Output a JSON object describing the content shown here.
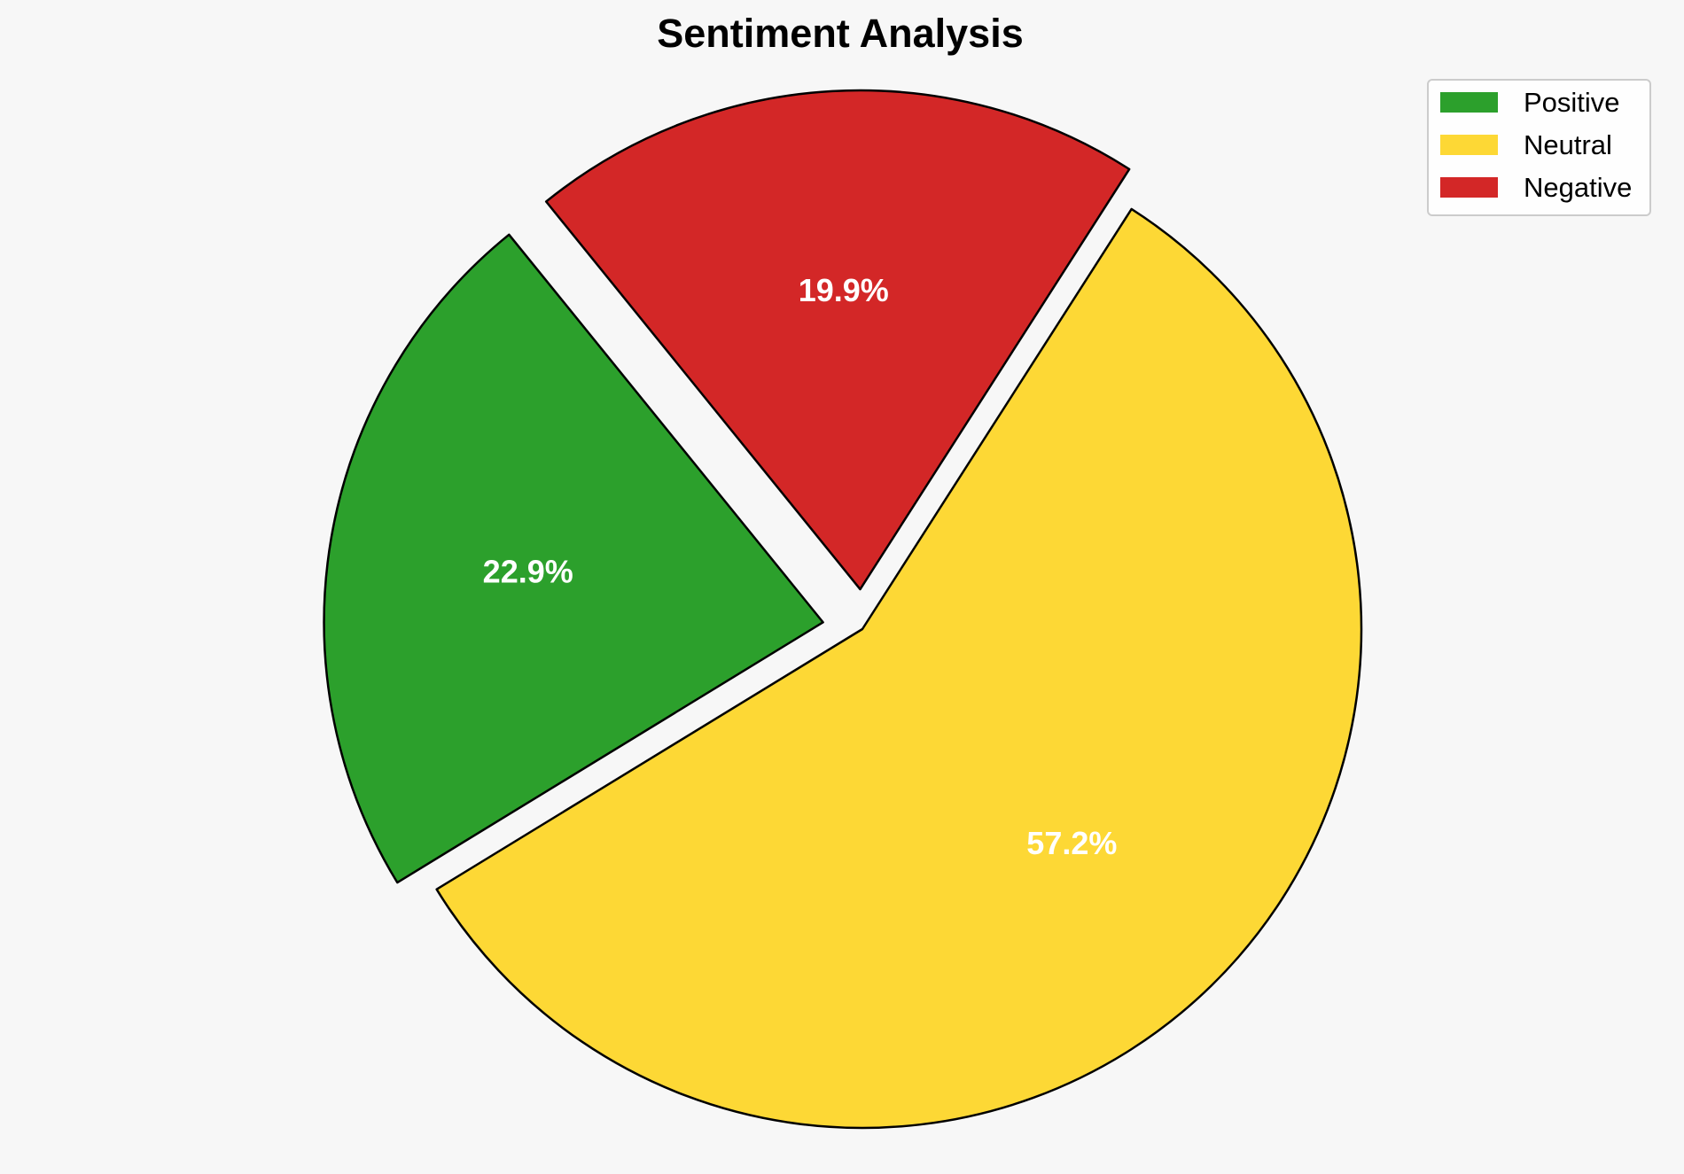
{
  "chart_data": {
    "type": "pie",
    "title": "Sentiment Analysis",
    "categories": [
      "Positive",
      "Neutral",
      "Negative"
    ],
    "values": [
      22.9,
      57.2,
      19.9
    ],
    "labels": [
      "22.9%",
      "57.2%",
      "19.9%"
    ],
    "colors": [
      "#2ca02c",
      "#fdd835",
      "#d32727"
    ],
    "edge_color": "#000000",
    "label_color": "#ffffff",
    "background": "#f7f7f7",
    "exploded": [
      "Positive",
      "Negative"
    ],
    "legend": {
      "placement": "top-right",
      "entries": [
        "Positive",
        "Neutral",
        "Negative"
      ]
    }
  }
}
